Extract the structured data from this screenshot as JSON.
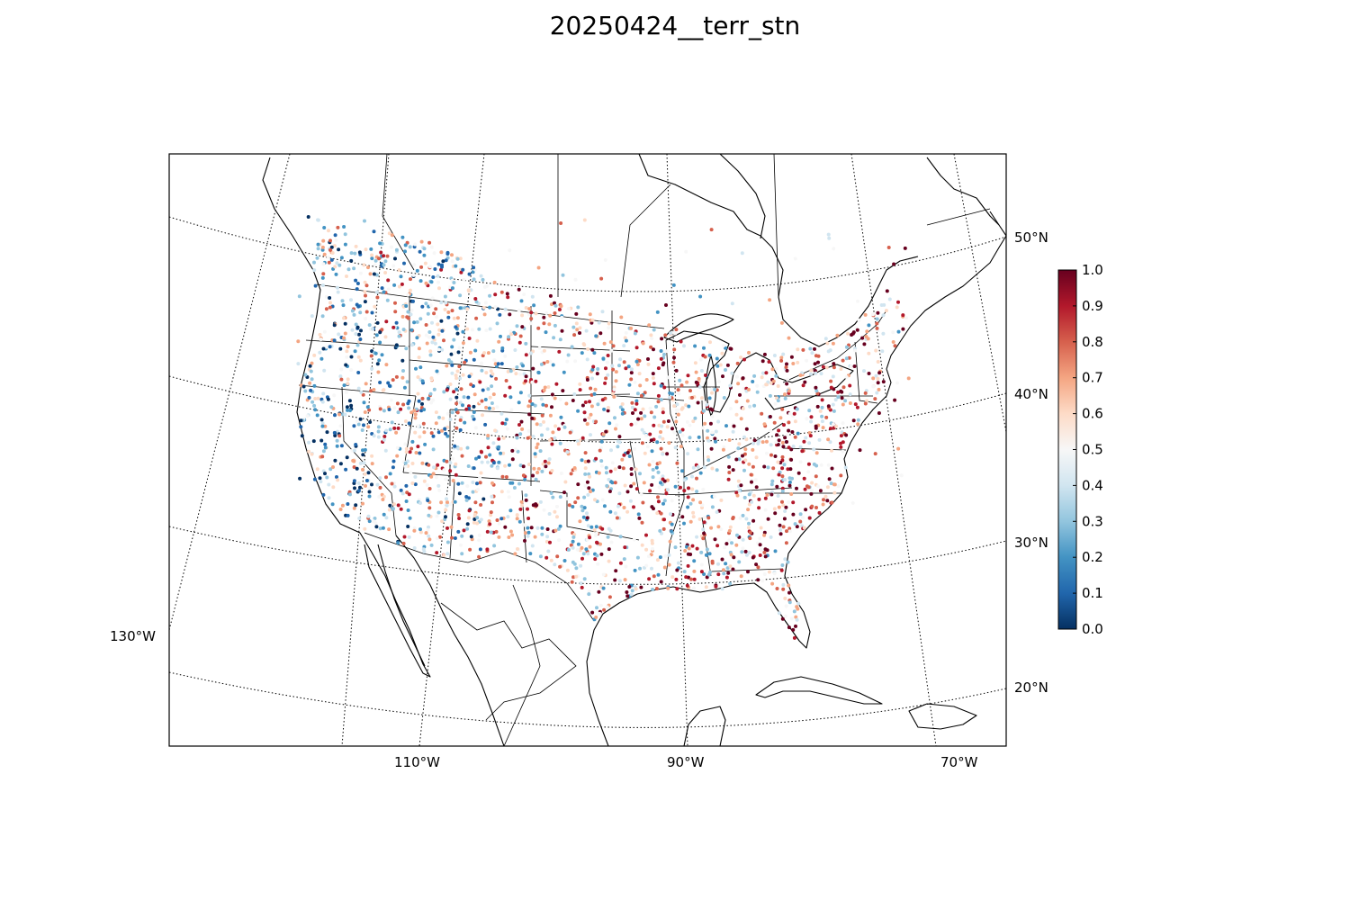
{
  "title": "20250424__terr_stn",
  "map": {
    "projection": "lambert-conformal",
    "lat_labels": [
      "50°N",
      "40°N",
      "30°N",
      "20°N"
    ],
    "lon_labels": [
      "130°W",
      "110°W",
      "90°W",
      "70°W"
    ],
    "graticule_style": "dotted"
  },
  "colorbar": {
    "colormap": "RdBu_r",
    "min": 0.0,
    "max": 1.0,
    "ticks": [
      "0.0",
      "0.1",
      "0.2",
      "0.3",
      "0.4",
      "0.5",
      "0.6",
      "0.7",
      "0.8",
      "0.9",
      "1.0"
    ],
    "colors": [
      "#053061",
      "#2166ac",
      "#4393c3",
      "#92c5de",
      "#d1e5f0",
      "#f7f7f7",
      "#fddbc7",
      "#f4a582",
      "#d6604d",
      "#b2182b",
      "#67001f"
    ]
  },
  "legend_colors": {
    "coast": "#000000",
    "border": "#000000",
    "grid": "#000000"
  }
}
